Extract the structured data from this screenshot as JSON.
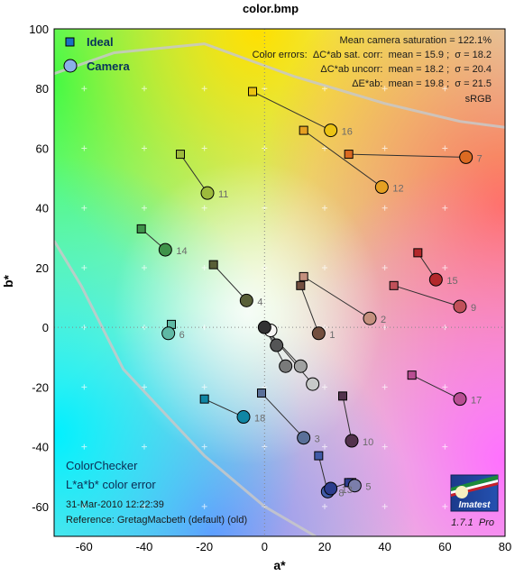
{
  "chart_data": {
    "type": "scatter",
    "title": "color.bmp",
    "xlabel": "a*",
    "ylabel": "b*",
    "xlim": [
      -70,
      80
    ],
    "ylim": [
      -70,
      100
    ],
    "xticks": [
      -60,
      -40,
      -20,
      0,
      20,
      40,
      60,
      80
    ],
    "yticks": [
      -60,
      -40,
      -20,
      0,
      20,
      40,
      60,
      80,
      100
    ],
    "legend": {
      "position": "top-left",
      "ideal": "Ideal",
      "camera": "Camera"
    },
    "stats": [
      "Mean camera saturation = 122.1%",
      "Color errors:  ΔC*ab sat. corr:  mean = 15.9 ;  σ = 18.2",
      "ΔC*ab uncorr:  mean = 18.2 ;  σ = 20.4",
      "ΔE*ab:  mean = 19.8 ;  σ = 21.5",
      "sRGB"
    ],
    "footer": {
      "line1": "ColorChecker",
      "line2": "L*a*b* color error",
      "date": "31-Mar-2010 12:22:39",
      "reference": "Reference: GretagMacbeth (default) (old)"
    },
    "brand": {
      "logo_text": "Imatest",
      "version": "1.7.1  Pro"
    },
    "gamut": [
      [
        -70,
        29
      ],
      [
        -61,
        14
      ],
      [
        -47,
        -14
      ],
      [
        -20,
        -43
      ],
      [
        0,
        -60
      ],
      [
        17,
        -70
      ]
    ],
    "gamut_top": [
      [
        -70,
        85
      ],
      [
        -50,
        92
      ],
      [
        -20,
        95
      ],
      [
        10,
        84
      ],
      [
        40,
        75
      ],
      [
        65,
        69
      ],
      [
        80,
        67
      ]
    ],
    "series": [
      {
        "name": "Ideal",
        "points": [
          {
            "id": "1",
            "x": 12,
            "y": 14
          },
          {
            "id": "2",
            "x": 13,
            "y": 17
          },
          {
            "id": "3",
            "x": -1,
            "y": -22
          },
          {
            "id": "4",
            "x": -17,
            "y": 21
          },
          {
            "id": "5",
            "x": 29,
            "y": -52
          },
          {
            "id": "6",
            "x": -31,
            "y": 1
          },
          {
            "id": "7",
            "x": 28,
            "y": 58
          },
          {
            "id": "8",
            "x": 18,
            "y": -43
          },
          {
            "id": "9",
            "x": 43,
            "y": 14
          },
          {
            "id": "10",
            "x": 26,
            "y": -23
          },
          {
            "id": "11",
            "x": -28,
            "y": 58
          },
          {
            "id": "12",
            "x": 13,
            "y": 66
          },
          {
            "id": "13",
            "x": 28,
            "y": -52
          },
          {
            "id": "14",
            "x": -41,
            "y": 33
          },
          {
            "id": "15",
            "x": 51,
            "y": 25
          },
          {
            "id": "16",
            "x": -4,
            "y": 79
          },
          {
            "id": "17",
            "x": 49,
            "y": -16
          },
          {
            "id": "18",
            "x": -20,
            "y": -24
          },
          {
            "id": "19",
            "x": 0,
            "y": 0
          },
          {
            "id": "20",
            "x": 0,
            "y": 0
          },
          {
            "id": "21",
            "x": 0,
            "y": 0
          },
          {
            "id": "22",
            "x": 0,
            "y": 0
          },
          {
            "id": "23",
            "x": 0,
            "y": 0
          },
          {
            "id": "24",
            "x": 0,
            "y": 0
          }
        ]
      },
      {
        "name": "Camera",
        "points": [
          {
            "id": "1",
            "x": 18,
            "y": -2
          },
          {
            "id": "2",
            "x": 35,
            "y": 3
          },
          {
            "id": "3",
            "x": 13,
            "y": -37
          },
          {
            "id": "4",
            "x": -6,
            "y": 9
          },
          {
            "id": "5",
            "x": 30,
            "y": -53
          },
          {
            "id": "6",
            "x": -32,
            "y": -2
          },
          {
            "id": "7",
            "x": 67,
            "y": 57
          },
          {
            "id": "8",
            "x": 21,
            "y": -55
          },
          {
            "id": "9",
            "x": 65,
            "y": 7
          },
          {
            "id": "10",
            "x": 29,
            "y": -38
          },
          {
            "id": "11",
            "x": -19,
            "y": 45
          },
          {
            "id": "12",
            "x": 39,
            "y": 47
          },
          {
            "id": "13",
            "x": 22,
            "y": -54
          },
          {
            "id": "14",
            "x": -33,
            "y": 26
          },
          {
            "id": "15",
            "x": 57,
            "y": 16
          },
          {
            "id": "16",
            "x": 22,
            "y": 66
          },
          {
            "id": "17",
            "x": 65,
            "y": -24
          },
          {
            "id": "18",
            "x": -7,
            "y": -30
          },
          {
            "id": "19",
            "x": 2,
            "y": -1
          },
          {
            "id": "20",
            "x": 16,
            "y": -19
          },
          {
            "id": "21",
            "x": 12,
            "y": -13
          },
          {
            "id": "22",
            "x": 7,
            "y": -13
          },
          {
            "id": "23",
            "x": 4,
            "y": -6
          },
          {
            "id": "24",
            "x": 0,
            "y": 0
          }
        ]
      }
    ],
    "point_labels": [
      "1",
      "2",
      "3",
      "4",
      "5",
      "6",
      "7",
      "8",
      "9",
      "10",
      "11",
      "12",
      "13",
      "14",
      "15",
      "16",
      "17",
      "18"
    ],
    "colors": {
      "1": "#734f3f",
      "2": "#c4907e",
      "3": "#5a7099",
      "4": "#585f37",
      "5": "#7b7eaa",
      "6": "#5fb9a5",
      "7": "#db6a22",
      "8": "#405ba7",
      "9": "#c15059",
      "10": "#53324d",
      "11": "#9dba3c",
      "12": "#e5a022",
      "13": "#2c3c8d",
      "14": "#3f934a",
      "15": "#b3292b",
      "16": "#ebc313",
      "17": "#b84e92",
      "18": "#0f86a4",
      "19": "#f6f6f3",
      "20": "#c7c9c9",
      "21": "#a0a1a1",
      "22": "#797a7a",
      "23": "#545556",
      "24": "#323233"
    }
  }
}
